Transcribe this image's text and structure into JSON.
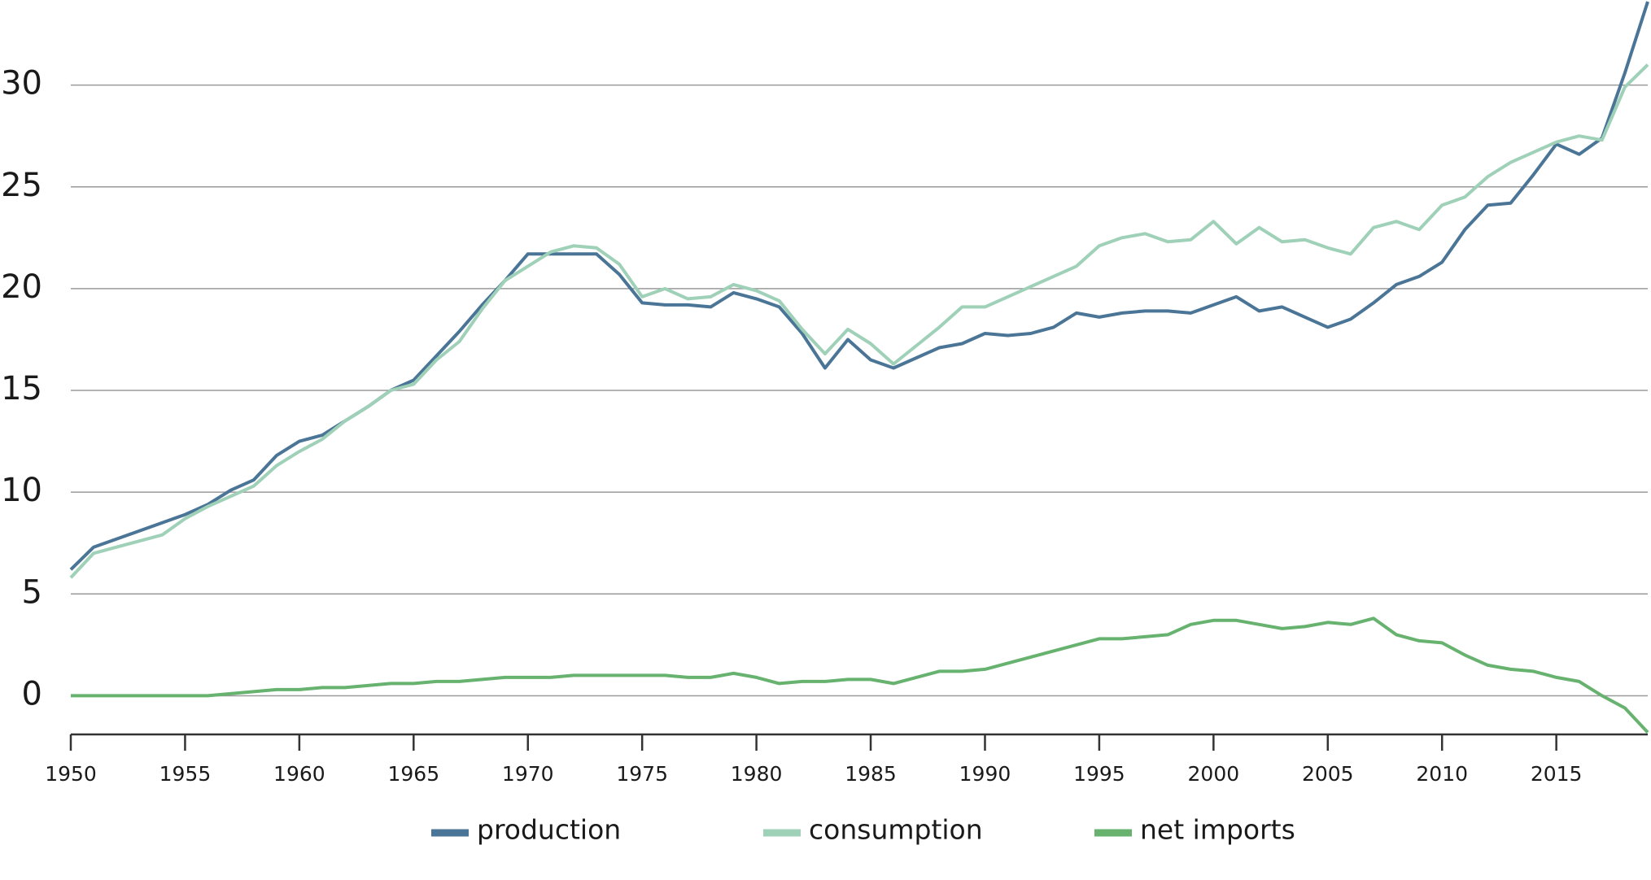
{
  "chart_data": {
    "type": "line",
    "x": [
      1950,
      1951,
      1952,
      1953,
      1954,
      1955,
      1956,
      1957,
      1958,
      1959,
      1960,
      1961,
      1962,
      1963,
      1964,
      1965,
      1966,
      1967,
      1968,
      1969,
      1970,
      1971,
      1972,
      1973,
      1974,
      1975,
      1976,
      1977,
      1978,
      1979,
      1980,
      1981,
      1982,
      1983,
      1984,
      1985,
      1986,
      1987,
      1988,
      1989,
      1990,
      1991,
      1992,
      1993,
      1994,
      1995,
      1996,
      1997,
      1998,
      1999,
      2000,
      2001,
      2002,
      2003,
      2004,
      2005,
      2006,
      2007,
      2008,
      2009,
      2010,
      2011,
      2012,
      2013,
      2014,
      2015,
      2016,
      2017,
      2018,
      2019
    ],
    "series": [
      {
        "name": "production",
        "color": "#4a7596",
        "values": [
          6.2,
          7.3,
          7.7,
          8.1,
          8.5,
          8.9,
          9.4,
          10.1,
          10.6,
          11.8,
          12.5,
          12.8,
          13.5,
          14.2,
          15.0,
          15.5,
          16.7,
          17.9,
          19.2,
          20.4,
          21.7,
          21.7,
          21.7,
          21.7,
          20.7,
          19.3,
          19.2,
          19.2,
          19.1,
          19.8,
          19.5,
          19.1,
          17.8,
          16.1,
          17.5,
          16.5,
          16.1,
          16.6,
          17.1,
          17.3,
          17.8,
          17.7,
          17.8,
          18.1,
          18.8,
          18.6,
          18.8,
          18.9,
          18.9,
          18.8,
          19.2,
          19.6,
          18.9,
          19.1,
          18.6,
          18.1,
          18.5,
          19.3,
          20.2,
          20.6,
          21.3,
          22.9,
          24.1,
          24.2,
          25.6,
          27.1,
          26.6,
          27.4,
          30.6,
          34.1
        ]
      },
      {
        "name": "consumption",
        "color": "#9fd0b8",
        "values": [
          5.8,
          7.0,
          7.3,
          7.6,
          7.9,
          8.7,
          9.3,
          9.8,
          10.3,
          11.3,
          12.0,
          12.6,
          13.5,
          14.2,
          15.0,
          15.3,
          16.5,
          17.4,
          19.0,
          20.4,
          21.1,
          21.8,
          22.1,
          22.0,
          21.2,
          19.6,
          20.0,
          19.5,
          19.6,
          20.2,
          19.9,
          19.4,
          18.0,
          16.8,
          18.0,
          17.3,
          16.3,
          17.2,
          18.1,
          19.1,
          19.1,
          19.6,
          20.1,
          20.6,
          21.1,
          22.1,
          22.5,
          22.7,
          22.3,
          22.4,
          23.3,
          22.2,
          23.0,
          22.3,
          22.4,
          22.0,
          21.7,
          23.0,
          23.3,
          22.9,
          24.1,
          24.5,
          25.5,
          26.2,
          26.7,
          27.2,
          27.5,
          27.3,
          29.9,
          31.0
        ]
      },
      {
        "name": "net imports",
        "color": "#66b26e",
        "values": [
          0,
          0,
          0,
          0,
          0,
          0,
          0,
          0.1,
          0.2,
          0.3,
          0.3,
          0.4,
          0.4,
          0.5,
          0.6,
          0.6,
          0.7,
          0.7,
          0.8,
          0.9,
          0.9,
          0.9,
          1.0,
          1.0,
          1.0,
          1.0,
          1.0,
          0.9,
          0.9,
          1.1,
          0.9,
          0.6,
          0.7,
          0.7,
          0.8,
          0.8,
          0.6,
          0.9,
          1.2,
          1.2,
          1.3,
          1.6,
          1.9,
          2.2,
          2.5,
          2.8,
          2.8,
          2.9,
          3.0,
          3.5,
          3.7,
          3.7,
          3.5,
          3.3,
          3.4,
          3.6,
          3.5,
          3.8,
          3.0,
          2.7,
          2.6,
          2.0,
          1.5,
          1.3,
          1.2,
          0.9,
          0.7,
          0.0,
          -0.6,
          -1.8
        ]
      }
    ],
    "xlim": [
      1950,
      2019
    ],
    "xticks": [
      1950,
      1955,
      1960,
      1965,
      1970,
      1975,
      1980,
      1985,
      1990,
      1995,
      2000,
      2005,
      2010,
      2015
    ],
    "ylim": [
      -1.9,
      34.1
    ],
    "yticks": [
      0,
      5,
      10,
      15,
      20,
      25,
      30
    ],
    "grid": true
  }
}
